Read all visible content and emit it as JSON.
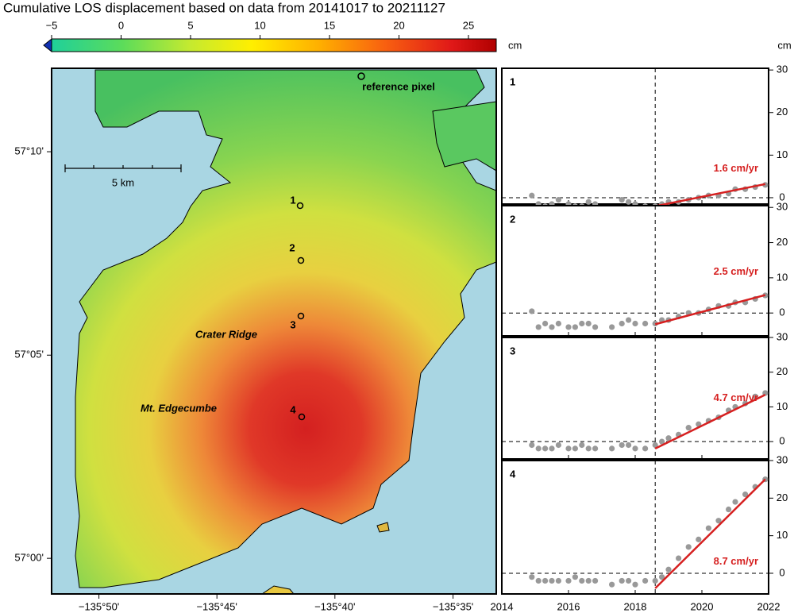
{
  "title": "Cumulative LOS displacement based on data from 20141017 to 20211127",
  "colorbar": {
    "lim": [
      -5,
      27
    ],
    "ticks": [
      -5,
      0,
      5,
      10,
      15,
      20,
      25
    ],
    "unit": "cm"
  },
  "timeseries_unit": "cm",
  "map": {
    "xlim": [
      -135.8667,
      -135.5528
    ],
    "ylim": [
      56.9854,
      57.2009
    ],
    "xticks": [
      {
        "value": -135.8333,
        "label": "−135°50'"
      },
      {
        "value": -135.75,
        "label": "−135°45'"
      },
      {
        "value": -135.6667,
        "label": "−135°40'"
      },
      {
        "value": -135.5833,
        "label": "−135°35'"
      }
    ],
    "yticks": [
      {
        "value": 57.0,
        "label": "57°00'"
      },
      {
        "value": 57.0833,
        "label": "57°05'"
      },
      {
        "value": 57.1667,
        "label": "57°10'"
      }
    ],
    "labels": {
      "reference": "reference pixel",
      "crater": "Crater Ridge",
      "edgecumbe": "Mt. Edgecumbe",
      "scale": "5 km",
      "points": [
        "1",
        "2",
        "3",
        "4"
      ]
    }
  },
  "chart_data": [
    {
      "type": "scatter",
      "panel_label": "1",
      "color": "#999999",
      "x": [
        2014.9,
        2015.1,
        2015.3,
        2015.5,
        2015.7,
        2016.0,
        2016.2,
        2016.4,
        2016.6,
        2016.8,
        2017.3,
        2017.6,
        2017.8,
        2018.0,
        2018.3,
        2018.6,
        2018.8,
        2019.0,
        2019.3,
        2019.6,
        2019.9,
        2020.2,
        2020.5,
        2020.8,
        2021.0,
        2021.3,
        2021.6,
        2021.9
      ],
      "values": [
        0.5,
        -1.5,
        -2,
        -1.5,
        -0.5,
        -1.5,
        -2,
        -2,
        -1,
        -1.5,
        -2.5,
        -0.5,
        -1,
        -1.5,
        -2,
        -2,
        -1.5,
        -1,
        -1,
        -0.5,
        0,
        0.5,
        0.5,
        1,
        2,
        2,
        2.5,
        3
      ],
      "trend": {
        "x": [
          2018.6,
          2021.9
        ],
        "values": [
          -2,
          3.2
        ],
        "color": "#d62020",
        "label": "1.6 cm/yr"
      },
      "event_x": 2018.6,
      "reference_line": 0,
      "xlim": [
        2014,
        2022
      ],
      "xticks": [
        2014,
        2016,
        2018,
        2020,
        2022
      ],
      "ylim": [
        -1.5,
        30.4
      ],
      "yticks": [
        0,
        10,
        20,
        30
      ]
    },
    {
      "type": "scatter",
      "panel_label": "2",
      "color": "#999999",
      "x": [
        2014.9,
        2015.1,
        2015.3,
        2015.5,
        2015.7,
        2016.0,
        2016.2,
        2016.4,
        2016.6,
        2016.8,
        2017.3,
        2017.6,
        2017.8,
        2018.0,
        2018.3,
        2018.6,
        2018.8,
        2019.0,
        2019.3,
        2019.6,
        2019.9,
        2020.2,
        2020.5,
        2020.8,
        2021.0,
        2021.3,
        2021.6,
        2021.9
      ],
      "values": [
        0.5,
        -4,
        -3,
        -4,
        -3,
        -4,
        -4,
        -3,
        -3,
        -4,
        -4,
        -3,
        -2,
        -3,
        -3,
        -3,
        -2,
        -2,
        -1,
        0,
        0,
        1,
        2,
        2,
        3,
        3,
        4,
        5
      ],
      "trend": {
        "x": [
          2018.6,
          2021.9
        ],
        "values": [
          -3.2,
          5.1
        ],
        "color": "#d62020",
        "label": "2.5 cm/yr"
      },
      "event_x": 2018.6,
      "reference_line": 0,
      "xlim": [
        2014,
        2022
      ],
      "xticks": [
        2014,
        2016,
        2018,
        2020,
        2022
      ],
      "ylim": [
        -6.5,
        30.5
      ],
      "yticks": [
        0,
        10,
        20,
        30
      ]
    },
    {
      "type": "scatter",
      "panel_label": "3",
      "color": "#999999",
      "x": [
        2014.9,
        2015.1,
        2015.3,
        2015.5,
        2015.7,
        2016.0,
        2016.2,
        2016.4,
        2016.6,
        2016.8,
        2017.3,
        2017.6,
        2017.8,
        2018.0,
        2018.3,
        2018.6,
        2018.8,
        2019.0,
        2019.3,
        2019.6,
        2019.9,
        2020.2,
        2020.5,
        2020.8,
        2021.0,
        2021.3,
        2021.6,
        2021.9
      ],
      "values": [
        -1,
        -2,
        -2,
        -2,
        -1,
        -2,
        -2,
        -1,
        -2,
        -2,
        -2,
        -1,
        -1,
        -2,
        -2,
        -1,
        0,
        1,
        2,
        4,
        5,
        6,
        7,
        9,
        10,
        11,
        13,
        14
      ],
      "trend": {
        "x": [
          2018.6,
          2021.9
        ],
        "values": [
          -2,
          13.5
        ],
        "color": "#d62020",
        "label": "4.7 cm/yr"
      },
      "event_x": 2018.6,
      "reference_line": 0,
      "xlim": [
        2014,
        2022
      ],
      "xticks": [
        2014,
        2016,
        2018,
        2020,
        2022
      ],
      "ylim": [
        -5,
        30
      ],
      "yticks": [
        0,
        10,
        20,
        30
      ]
    },
    {
      "type": "scatter",
      "panel_label": "4",
      "color": "#999999",
      "x": [
        2014.9,
        2015.1,
        2015.3,
        2015.5,
        2015.7,
        2016.0,
        2016.2,
        2016.4,
        2016.6,
        2016.8,
        2017.3,
        2017.6,
        2017.8,
        2018.0,
        2018.3,
        2018.6,
        2018.8,
        2019.0,
        2019.3,
        2019.6,
        2019.9,
        2020.2,
        2020.5,
        2020.8,
        2021.0,
        2021.3,
        2021.6,
        2021.9
      ],
      "values": [
        -1,
        -2,
        -2,
        -2,
        -2,
        -2,
        -1,
        -2,
        -2,
        -2,
        -3,
        -2,
        -2,
        -3,
        -2,
        -2,
        -1,
        1,
        4,
        7,
        9,
        12,
        14,
        17,
        19,
        21,
        23,
        25
      ],
      "trend": {
        "x": [
          2018.6,
          2021.9
        ],
        "values": [
          -4,
          25
        ],
        "color": "#d62020",
        "label": "8.7 cm/yr"
      },
      "event_x": 2018.6,
      "reference_line": 0,
      "xlim": [
        2014,
        2022
      ],
      "xticks": [
        2014,
        2016,
        2018,
        2020,
        2022
      ],
      "ylim": [
        -5.5,
        30
      ],
      "yticks": [
        0,
        10,
        20,
        30
      ]
    }
  ]
}
